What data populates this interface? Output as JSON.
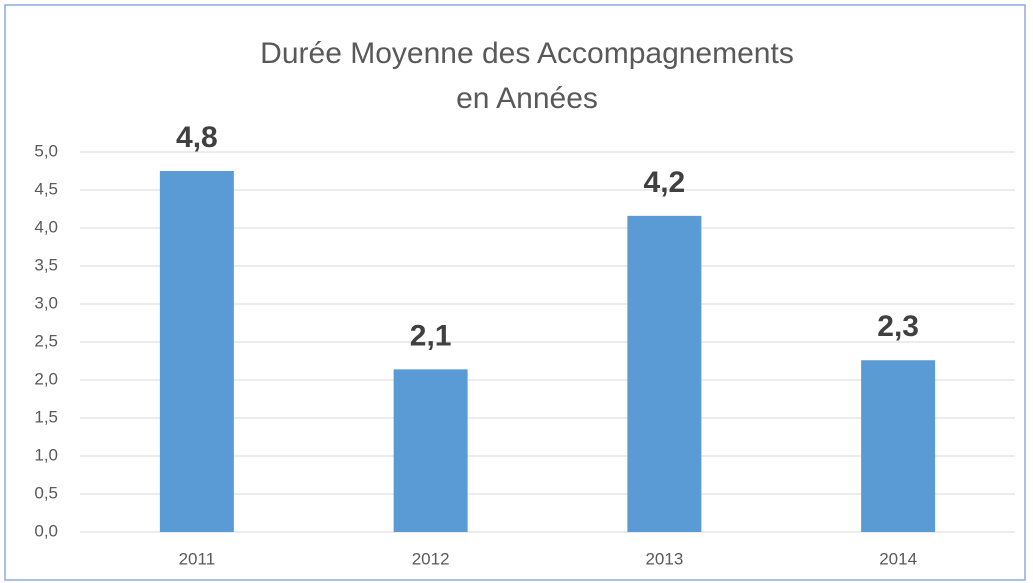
{
  "chart_data": {
    "type": "bar",
    "title": [
      "Durée Moyenne des Accompagnements",
      "en Années"
    ],
    "categories": [
      "2011",
      "2012",
      "2013",
      "2014"
    ],
    "values": [
      4.75,
      2.14,
      4.16,
      2.26
    ],
    "value_labels": [
      "4,8",
      "2,1",
      "4,2",
      "2,3"
    ],
    "color": "#5b9bd5",
    "ylim": [
      0,
      5
    ],
    "yticks": [
      {
        "value": 0,
        "label": "0,0"
      },
      {
        "value": 0.5,
        "label": "0,5"
      },
      {
        "value": 1,
        "label": "1,0"
      },
      {
        "value": 1.5,
        "label": "1,5"
      },
      {
        "value": 2,
        "label": "2,0"
      },
      {
        "value": 2.5,
        "label": "2,5"
      },
      {
        "value": 3,
        "label": "3,0"
      },
      {
        "value": 3.5,
        "label": "3,5"
      },
      {
        "value": 4,
        "label": "4,0"
      },
      {
        "value": 4.5,
        "label": "4,5"
      },
      {
        "value": 5,
        "label": "5,0"
      }
    ],
    "grid": true
  }
}
